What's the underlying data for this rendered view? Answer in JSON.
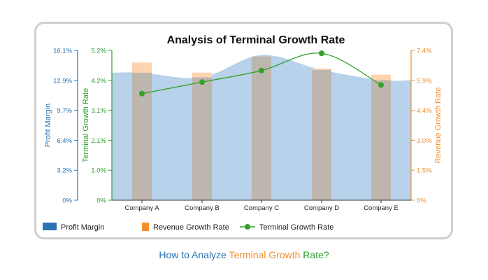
{
  "chart_data": {
    "type": "bar",
    "title": "Analysis of Terminal Growth Rate",
    "categories": [
      "Company A",
      "Company B",
      "Company C",
      "Company D",
      "Company E"
    ],
    "series": [
      {
        "name": "Profit Margin",
        "kind": "area",
        "axis": "profit",
        "values": [
          13.7,
          13.2,
          15.6,
          14.0,
          12.9
        ]
      },
      {
        "name": "Revenue Growth Rate",
        "kind": "bar",
        "axis": "revenue",
        "values": [
          6.8,
          6.3,
          7.1,
          6.5,
          6.2
        ]
      },
      {
        "name": "Terminal Growth Rate",
        "kind": "line",
        "axis": "terminal",
        "values": [
          3.7,
          4.1,
          4.5,
          5.1,
          4.0
        ]
      }
    ],
    "axes": {
      "profit": {
        "label": "Profit Margin",
        "ticks": [
          "0%",
          "3.2%",
          "6.4%",
          "9.7%",
          "12.9%",
          "16.1%"
        ],
        "range": [
          0,
          16.1
        ],
        "color": "#2a72b5",
        "side": "left-outer"
      },
      "terminal": {
        "label": "Terminal Growth Rate",
        "ticks": [
          "0%",
          "1.0%",
          "2.1%",
          "3.1%",
          "4.2%",
          "5.2%"
        ],
        "range": [
          0,
          5.2
        ],
        "color": "#2ca02c",
        "side": "left-inner"
      },
      "revenue": {
        "label": "Revenue Growth Rate",
        "ticks": [
          "0%",
          "1.5%",
          "3.0%",
          "4.4%",
          "5.9%",
          "7.4%"
        ],
        "range": [
          0,
          7.4
        ],
        "color": "#f28e2b",
        "side": "right"
      }
    },
    "legend": {
      "placement": "bottom",
      "items": [
        "Profit Margin",
        "Revenue Growth Rate",
        "Terminal Growth Rate"
      ]
    },
    "colors": {
      "profit_fill": "#b7d2ea",
      "profit_legend": "#2a72b5",
      "revenue_bar": "#fdd3b0",
      "revenue_legend": "#f28e2b",
      "overlap_bar": "#b9b4ae",
      "terminal_line": "#33a02c"
    },
    "grid": false
  },
  "caption": {
    "part1": "How to Analyze ",
    "part2": "Terminal Growth",
    "part3": " Rate?",
    "color1": "#2a72b5",
    "color2": "#f28e2b",
    "color3": "#2ca02c"
  }
}
